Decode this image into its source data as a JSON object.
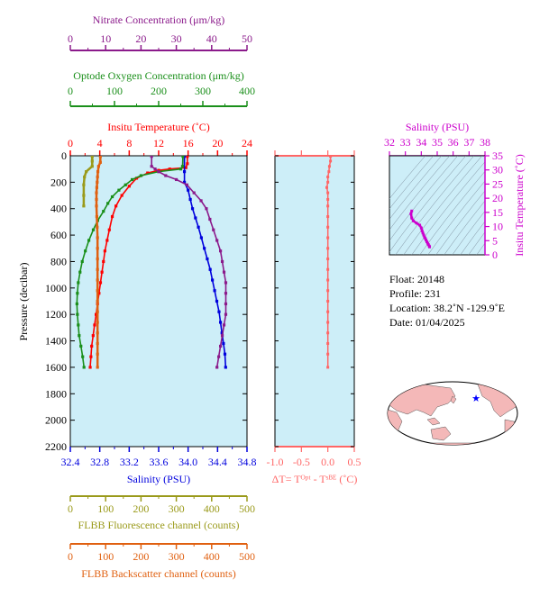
{
  "colors": {
    "nitrate": "#8b1a8b",
    "oxygen": "#1a8f1a",
    "temperature": "#ff0000",
    "salinity": "#0000dd",
    "fluorescence": "#9a9a1a",
    "backscatter": "#e06010",
    "delta": "#ff6666",
    "ts": "#cc00cc",
    "plot_bg": "#cdeef8"
  },
  "labels": {
    "pressure_axis": "Pressure (decibar)",
    "nitrate_axis": "Nitrate Concentration (μm/kg)",
    "oxygen_axis": "Optode Oxygen Concentration (μm/kg)",
    "temperature_axis": "Insitu Temperature (˚C)",
    "salinity_axis": "Salinity (PSU)",
    "fluorescence_axis": "FLBB Fluorescence channel (counts)",
    "backscatter_axis": "FLBB Backscatter channel (counts)",
    "delta_axis": "ΔT= Tᴼᵖᵗ - Tˢᴮᴱ (˚C)",
    "ts_salinity_axis": "Salinity (PSU)",
    "ts_temperature_axis": "Insitu Temperature (˚C)"
  },
  "info": {
    "float": "Float:  20148",
    "profile": "Profile:  231",
    "location": "Location:  38.2˚N  -129.9˚E",
    "date": "Date:  01/04/2025"
  },
  "chart_data": [
    {
      "type": "line",
      "id": "profiles",
      "y_axis": {
        "label": "Pressure (decibar)",
        "range": [
          2200,
          0
        ],
        "ticks": [
          0,
          200,
          400,
          600,
          800,
          1000,
          1200,
          1400,
          1600,
          1800,
          2000,
          2200
        ]
      },
      "axes": {
        "nitrate": {
          "range": [
            0,
            50
          ],
          "ticks": [
            0,
            10,
            20,
            30,
            40,
            50
          ]
        },
        "oxygen": {
          "range": [
            0,
            400
          ],
          "ticks": [
            0,
            100,
            200,
            300,
            400
          ]
        },
        "temperature": {
          "range": [
            0,
            24
          ],
          "ticks": [
            0,
            4,
            8,
            12,
            16,
            20,
            24
          ]
        },
        "salinity": {
          "range": [
            32.4,
            34.8
          ],
          "ticks": [
            "32.4",
            "32.8",
            "33.2",
            "33.6",
            "34.0",
            "34.4",
            "34.8"
          ]
        },
        "fluorescence": {
          "range": [
            0,
            500
          ],
          "ticks": [
            0,
            100,
            200,
            300,
            400,
            500
          ]
        },
        "backscatter": {
          "range": [
            0,
            500
          ],
          "ticks": [
            0,
            100,
            200,
            300,
            400,
            500
          ]
        }
      },
      "series": [
        {
          "key": "temperature",
          "points": [
            [
              15.9,
              5
            ],
            [
              15.9,
              60
            ],
            [
              15.7,
              90
            ],
            [
              13.5,
              100
            ],
            [
              12.0,
              110
            ],
            [
              10.5,
              130
            ],
            [
              9.0,
              170
            ],
            [
              8.0,
              230
            ],
            [
              7.0,
              300
            ],
            [
              6.2,
              380
            ],
            [
              5.7,
              460
            ],
            [
              5.3,
              560
            ],
            [
              5.0,
              640
            ],
            [
              4.7,
              720
            ],
            [
              4.5,
              800
            ],
            [
              4.3,
              880
            ],
            [
              4.1,
              960
            ],
            [
              3.9,
              1040
            ],
            [
              3.7,
              1120
            ],
            [
              3.5,
              1200
            ],
            [
              3.3,
              1280
            ],
            [
              3.1,
              1360
            ],
            [
              2.9,
              1440
            ],
            [
              2.8,
              1520
            ],
            [
              2.7,
              1600
            ]
          ]
        },
        {
          "key": "salinity",
          "points": [
            [
              33.95,
              5
            ],
            [
              33.95,
              120
            ],
            [
              33.95,
              200
            ],
            [
              34.0,
              260
            ],
            [
              34.03,
              330
            ],
            [
              34.06,
              400
            ],
            [
              34.1,
              470
            ],
            [
              34.14,
              540
            ],
            [
              34.18,
              620
            ],
            [
              34.22,
              700
            ],
            [
              34.26,
              780
            ],
            [
              34.3,
              860
            ],
            [
              34.33,
              940
            ],
            [
              34.36,
              1020
            ],
            [
              34.39,
              1100
            ],
            [
              34.42,
              1180
            ],
            [
              34.44,
              1260
            ],
            [
              34.46,
              1340
            ],
            [
              34.48,
              1420
            ],
            [
              34.5,
              1500
            ],
            [
              34.51,
              1600
            ]
          ]
        },
        {
          "key": "oxygen",
          "points": [
            [
              255,
              5
            ],
            [
              254,
              80
            ],
            [
              250,
              100
            ],
            [
              200,
              120
            ],
            [
              160,
              150
            ],
            [
              140,
              180
            ],
            [
              125,
              220
            ],
            [
              110,
              260
            ],
            [
              95,
              310
            ],
            [
              85,
              360
            ],
            [
              75,
              420
            ],
            [
              62,
              490
            ],
            [
              52,
              560
            ],
            [
              42,
              640
            ],
            [
              34,
              720
            ],
            [
              27,
              800
            ],
            [
              22,
              880
            ],
            [
              18,
              960
            ],
            [
              16,
              1040
            ],
            [
              15,
              1120
            ],
            [
              16,
              1200
            ],
            [
              18,
              1280
            ],
            [
              20,
              1360
            ],
            [
              24,
              1440
            ],
            [
              28,
              1520
            ],
            [
              31,
              1600
            ]
          ]
        },
        {
          "key": "nitrate",
          "points": [
            [
              23,
              5
            ],
            [
              23,
              80
            ],
            [
              24,
              100
            ],
            [
              25,
              120
            ],
            [
              27,
              150
            ],
            [
              30,
              180
            ],
            [
              33,
              220
            ],
            [
              35,
              280
            ],
            [
              37,
              340
            ],
            [
              38.5,
              400
            ],
            [
              39.5,
              480
            ],
            [
              40.5,
              560
            ],
            [
              41.5,
              640
            ],
            [
              42.5,
              720
            ],
            [
              43,
              800
            ],
            [
              43.5,
              880
            ],
            [
              44,
              960
            ],
            [
              44,
              1040
            ],
            [
              44,
              1120
            ],
            [
              44,
              1200
            ],
            [
              43.5,
              1280
            ],
            [
              43,
              1360
            ],
            [
              42.5,
              1440
            ],
            [
              42,
              1520
            ],
            [
              41.5,
              1600
            ]
          ]
        },
        {
          "key": "fluorescence",
          "points": [
            [
              62,
              5
            ],
            [
              62,
              40
            ],
            [
              62,
              80
            ],
            [
              45,
              120
            ],
            [
              40,
              160
            ],
            [
              38,
              220
            ],
            [
              38,
              300
            ],
            [
              38,
              380
            ]
          ]
        },
        {
          "key": "backscatter",
          "points": [
            [
              85,
              5
            ],
            [
              85,
              50
            ],
            [
              80,
              80
            ],
            [
              78,
              120
            ],
            [
              77,
              160
            ],
            [
              76,
              200
            ],
            [
              75,
              240
            ],
            [
              74,
              280
            ],
            [
              74,
              330
            ],
            [
              74,
              380
            ],
            [
              75,
              460
            ],
            [
              76,
              540
            ],
            [
              77,
              620
            ],
            [
              77,
              700
            ],
            [
              77,
              780
            ],
            [
              77,
              860
            ],
            [
              77,
              940
            ],
            [
              77,
              1020
            ],
            [
              77,
              1100
            ],
            [
              77,
              1180
            ],
            [
              77,
              1260
            ],
            [
              77,
              1340
            ],
            [
              77,
              1420
            ],
            [
              77,
              1500
            ],
            [
              77,
              1600
            ]
          ]
        }
      ]
    },
    {
      "type": "line",
      "id": "delta_t",
      "xlabel": "ΔT= Tᴼᵖᵗ - Tˢᴮᴱ (˚C)",
      "x_range": [
        -1.0,
        0.5
      ],
      "x_ticks": [
        "-1.0",
        "-0.5",
        "0.0",
        "0.5"
      ],
      "y_range": [
        2200,
        0
      ],
      "points": [
        [
          0.05,
          5
        ],
        [
          0.05,
          40
        ],
        [
          0.03,
          80
        ],
        [
          0.02,
          120
        ],
        [
          0.0,
          160
        ],
        [
          0.0,
          200
        ],
        [
          -0.02,
          240
        ],
        [
          0.0,
          280
        ],
        [
          0.0,
          330
        ],
        [
          0.0,
          380
        ],
        [
          0.0,
          460
        ],
        [
          0.0,
          540
        ],
        [
          0.0,
          620
        ],
        [
          0.0,
          700
        ],
        [
          0.0,
          780
        ],
        [
          0.0,
          860
        ],
        [
          0.0,
          940
        ],
        [
          0.0,
          1020
        ],
        [
          0.0,
          1100
        ],
        [
          0.0,
          1180
        ],
        [
          0.0,
          1260
        ],
        [
          0.0,
          1340
        ],
        [
          0.0,
          1420
        ],
        [
          0.0,
          1500
        ],
        [
          0.0,
          1600
        ]
      ]
    },
    {
      "type": "scatter",
      "id": "ts_diagram",
      "xlabel": "Salinity (PSU)",
      "ylabel": "Insitu Temperature (˚C)",
      "x_range": [
        32,
        38
      ],
      "x_ticks": [
        32,
        33,
        34,
        35,
        36,
        37,
        38
      ],
      "y_range": [
        0,
        35
      ],
      "y_ticks": [
        0,
        5,
        10,
        15,
        20,
        25,
        30,
        35
      ],
      "points": [
        [
          33.4,
          15.5
        ],
        [
          33.35,
          14.5
        ],
        [
          33.4,
          13.0
        ],
        [
          33.5,
          12.0
        ],
        [
          33.7,
          11.2
        ],
        [
          33.9,
          10.5
        ],
        [
          34.0,
          9.5
        ],
        [
          34.05,
          8.5
        ],
        [
          34.1,
          7.7
        ],
        [
          34.15,
          7.0
        ],
        [
          34.2,
          6.3
        ],
        [
          34.25,
          5.8
        ],
        [
          34.3,
          5.2
        ],
        [
          34.35,
          4.6
        ],
        [
          34.4,
          4.1
        ],
        [
          34.45,
          3.6
        ],
        [
          34.5,
          3.1
        ],
        [
          34.52,
          2.8
        ]
      ]
    }
  ]
}
